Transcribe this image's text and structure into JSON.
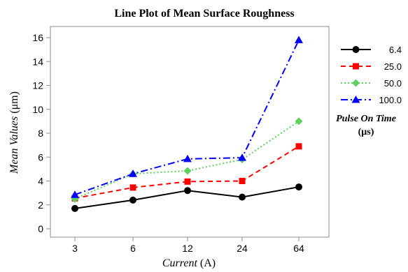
{
  "chart_data": {
    "type": "line",
    "title": "Line Plot of Mean Surface Roughness",
    "xlabel_italic": "Current",
    "xlabel_unit": " (A)",
    "ylabel_italic": "Mean Values",
    "ylabel_unit": " (μm)",
    "categories": [
      "3",
      "6",
      "12",
      "24",
      "64"
    ],
    "ylim": [
      0,
      16
    ],
    "yticks": [
      "0",
      "2",
      "4",
      "6",
      "8",
      "10",
      "12",
      "14",
      "16"
    ],
    "grid": false,
    "legend_placement": "right",
    "legend_title": "Pulse On Time",
    "legend_title_unit": "(μs)",
    "series": [
      {
        "name": "6.4",
        "values": [
          1.7,
          2.4,
          3.2,
          2.65,
          3.5
        ],
        "color": "#000000",
        "dash": "",
        "marker": "circle"
      },
      {
        "name": "25.0",
        "values": [
          2.55,
          3.45,
          3.95,
          4.0,
          6.9
        ],
        "color": "#ff0000",
        "dash": "7,5",
        "marker": "square"
      },
      {
        "name": "50.0",
        "values": [
          2.5,
          4.6,
          4.85,
          5.8,
          9.0
        ],
        "color": "#5fcf5f",
        "dash": "2,3",
        "marker": "diamond"
      },
      {
        "name": "100.0",
        "values": [
          2.85,
          4.6,
          5.85,
          5.95,
          15.8
        ],
        "color": "#0000ff",
        "dash": "10,4,2,4",
        "marker": "triangle"
      }
    ]
  }
}
